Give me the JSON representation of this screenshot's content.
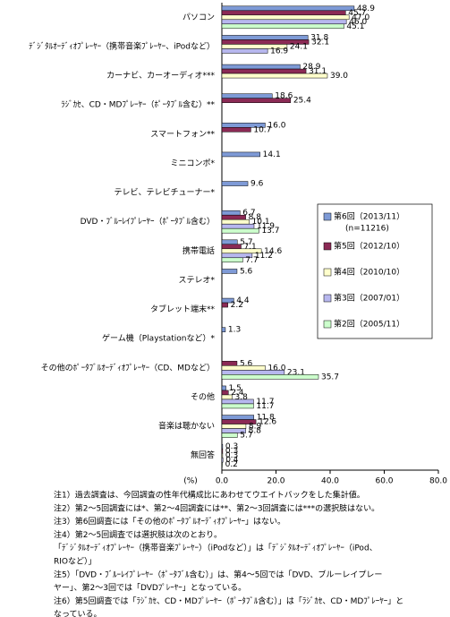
{
  "chart_data": {
    "type": "bar",
    "orientation": "horizontal",
    "categories": [
      "パソコン",
      "ﾃﾞｼﾞﾀﾙｵｰﾃﾞｨｵﾌﾟﾚｰﾔｰ（携帯音楽ﾌﾟﾚｰﾔｰ、iPodなど）",
      "カーナビ、カーオーディオ***",
      "ﾗｼﾞｶｾ、CD・MDﾌﾟﾚｰﾔｰ（ﾎﾟｰﾀﾌﾞﾙ含む）**",
      "スマートフォン**",
      "ミニコンポ*",
      "テレビ、テレビチューナー*",
      "DVD・ﾌﾞﾙｰﾚｲﾌﾟﾚｰﾔｰ（ﾎﾟｰﾀﾌﾞﾙ含む）",
      "携帯電話",
      "ステレオ*",
      "タブレット端末**",
      "ゲーム機（Playstationなど）*",
      "その他のﾎﾟｰﾀﾌﾞﾙｵｰﾃﾞｨｵﾌﾟﾚｰﾔｰ（CD、MDなど）",
      "その他",
      "音楽は聴かない",
      "無回答"
    ],
    "series": [
      {
        "name": "第6回（2013/11）",
        "color": "#7e9ad6",
        "values": [
          48.9,
          31.8,
          28.9,
          18.6,
          16.0,
          14.1,
          9.6,
          6.7,
          5.7,
          5.6,
          4.4,
          1.3,
          null,
          1.5,
          11.8,
          0.3
        ]
      },
      {
        "name": "第5回（2012/10）",
        "color": "#8b2a55",
        "values": [
          45.7,
          32.1,
          31.1,
          25.4,
          10.7,
          null,
          null,
          8.8,
          7.1,
          null,
          2.2,
          null,
          5.6,
          2.4,
          12.6,
          0.3
        ]
      },
      {
        "name": "第4回（2010/10）",
        "color": "#ffffcc",
        "values": [
          47.0,
          24.1,
          39.0,
          null,
          null,
          null,
          null,
          10.1,
          14.6,
          null,
          null,
          null,
          16.0,
          3.8,
          8.9,
          0.3
        ]
      },
      {
        "name": "第3回（2007/01）",
        "color": "#b7b7ee",
        "values": [
          46.0,
          16.9,
          null,
          null,
          null,
          null,
          null,
          11.9,
          11.2,
          null,
          null,
          null,
          23.1,
          11.7,
          8.8,
          0.4
        ]
      },
      {
        "name": "第2回（2005/11）",
        "color": "#ccffcc",
        "values": [
          45.1,
          null,
          null,
          null,
          null,
          null,
          null,
          13.7,
          7.7,
          null,
          null,
          null,
          35.7,
          11.7,
          5.7,
          0.2
        ]
      }
    ],
    "legend_note": "(n=11216)",
    "x_label": "(%)",
    "xlim": [
      0,
      80
    ],
    "xticks": [
      0,
      20,
      40,
      60,
      80
    ]
  },
  "notes": [
    "注1）過去調査は、今回調査の性年代構成比にあわせてウエイトバックをした集計値。",
    "注2）第2～5回調査には*、第2～4回調査には**、第2～3回調査には***の選択肢はない。",
    "注3）第6回調査には「その他のﾎﾟｰﾀﾌﾞﾙｵｰﾃﾞｨｵﾌﾟﾚｰﾔｰ」はない。",
    "注4）第2～5回調査では選択肢は次のとおり。",
    "「ﾃﾞｼﾞﾀﾙｵｰﾃﾞｨｵﾌﾟﾚｰﾔｰ（携帯音楽ﾌﾟﾚｰﾔｰ）（iPodなど）」は「ﾃﾞｼﾞﾀﾙｵｰﾃﾞｨｵﾌﾟﾚｰﾔｰ（iPod、",
    "RIOなど）」",
    "注5）「DVD・ﾌﾞﾙｰﾚｲﾌﾟﾚｰﾔｰ（ﾎﾟｰﾀﾌﾞﾙ含む）」は、第4～5回では「DVD、ブルーレイプレー",
    "ヤー」、第2～3回では「DVDﾌﾟﾚｰﾔｰ」となっている。",
    "注6）第5回調査では「ﾗｼﾞｶｾ、CD・MDﾌﾟﾚｰﾔｰ（ﾎﾟｰﾀﾌﾞﾙ含む）」は「ﾗｼﾞｶｾ、CD・MDﾌﾟﾚｰﾔｰ」と",
    "なっている。"
  ]
}
